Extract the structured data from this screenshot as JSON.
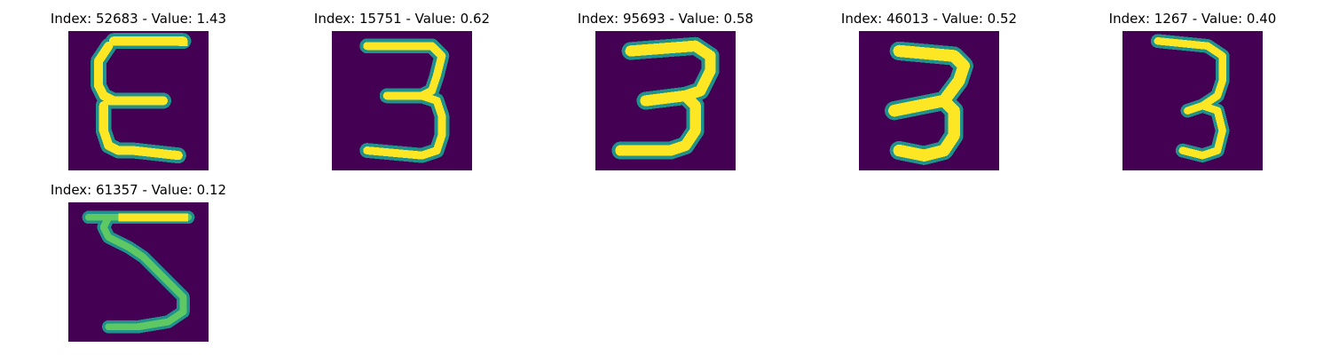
{
  "colors": {
    "background": "#440154",
    "low": "#3b528b",
    "mid": "#21918c",
    "high": "#5ec962",
    "peak": "#fde725"
  },
  "panels": [
    {
      "title": "Index: 52683 - Value: 1.43",
      "digit_image": "handwritten-digit-3-icon"
    },
    {
      "title": "Index: 15751 - Value: 0.62",
      "digit_image": "handwritten-digit-3-icon"
    },
    {
      "title": "Index: 95693 - Value: 0.58",
      "digit_image": "handwritten-digit-3-icon"
    },
    {
      "title": "Index: 46013 - Value: 0.52",
      "digit_image": "handwritten-digit-3-icon"
    },
    {
      "title": "Index: 1267 - Value: 0.40",
      "digit_image": "handwritten-digit-3-icon"
    },
    {
      "title": "Index: 61357 - Value: 0.12",
      "digit_image": "handwritten-digit-5-icon"
    }
  ]
}
